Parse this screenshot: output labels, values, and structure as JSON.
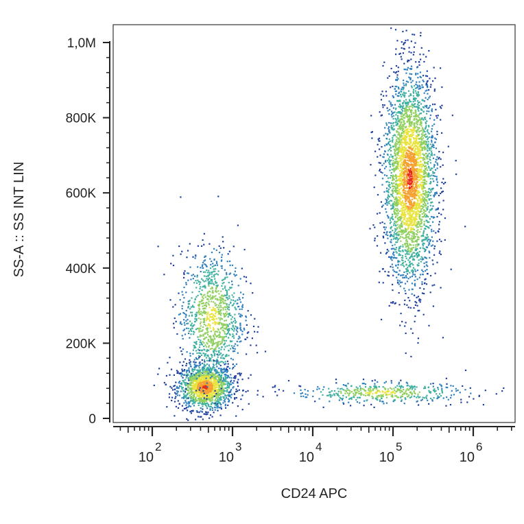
{
  "chart_data": {
    "type": "scatter",
    "subtype": "flow-cytometry density plot",
    "xlabel": "CD24 APC",
    "ylabel": "SS-A :: SS INT LIN",
    "x_scale": "log",
    "xlim": [
      30,
      3000000
    ],
    "ylim": [
      -20000,
      1050000
    ],
    "x_ticks": [
      {
        "base": "10",
        "exp": "2",
        "value": 100
      },
      {
        "base": "10",
        "exp": "3",
        "value": 1000
      },
      {
        "base": "10",
        "exp": "4",
        "value": 10000
      },
      {
        "base": "10",
        "exp": "5",
        "value": 100000
      },
      {
        "base": "10",
        "exp": "6",
        "value": 1000000
      }
    ],
    "y_ticks": [
      {
        "label": "0",
        "value": 0
      },
      {
        "label": "200K",
        "value": 200000
      },
      {
        "label": "400K",
        "value": 400000
      },
      {
        "label": "600K",
        "value": 600000
      },
      {
        "label": "800K",
        "value": 800000
      },
      {
        "label": "1,0M",
        "value": 1000000
      }
    ],
    "colormap": [
      "#1f3f9f",
      "#2d7fbf",
      "#3fb0a0",
      "#8fcf5f",
      "#e9e33f",
      "#f5a030",
      "#e82a1a"
    ],
    "populations": [
      {
        "x_center": 450,
        "x_spread_decades": 0.17,
        "y_center": 85000,
        "y_spread": 30000,
        "points": 1400
      },
      {
        "x_center": 550,
        "x_spread_decades": 0.2,
        "y_center": 270000,
        "y_spread": 90000,
        "points": 1100
      },
      {
        "x_center": 160000,
        "x_spread_decades": 0.16,
        "y_center": 640000,
        "y_spread": 140000,
        "points": 3200
      },
      {
        "x_center": 70000,
        "x_spread_decades": 0.55,
        "y_center": 70000,
        "y_spread": 14000,
        "points": 450
      }
    ],
    "grid": false,
    "legend": "none"
  }
}
